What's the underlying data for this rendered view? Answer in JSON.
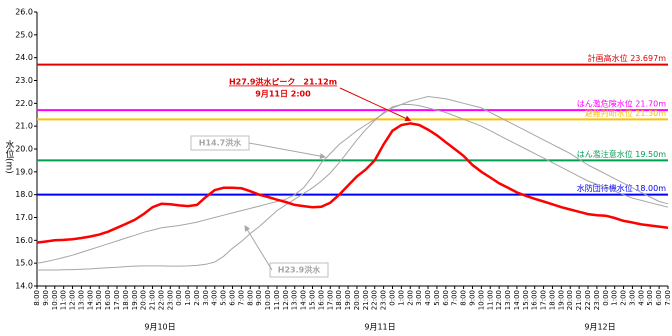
{
  "chart_data": {
    "type": "line",
    "y_axis_label": "水位(m)",
    "categories": [
      "8:00",
      "9:00",
      "10:00",
      "11:00",
      "12:00",
      "13:00",
      "14:00",
      "15:00",
      "16:00",
      "17:00",
      "18:00",
      "19:00",
      "20:00",
      "21:00",
      "22:00",
      "23:00",
      "0:00",
      "1:00",
      "2:00",
      "3:00",
      "4:00",
      "5:00",
      "6:00",
      "7:00",
      "8:00",
      "9:00",
      "10:00",
      "11:00",
      "12:00",
      "13:00",
      "14:00",
      "15:00",
      "16:00",
      "17:00",
      "18:00",
      "19:00",
      "20:00",
      "21:00",
      "22:00",
      "23:00",
      "0:00",
      "1:00",
      "2:00",
      "3:00",
      "4:00",
      "5:00",
      "6:00",
      "7:00",
      "8:00",
      "9:00",
      "10:00",
      "11:00",
      "12:00",
      "13:00",
      "14:00",
      "15:00",
      "16:00",
      "17:00",
      "18:00",
      "19:00",
      "20:00",
      "21:00",
      "22:00",
      "23:00",
      "0:00",
      "1:00",
      "2:00",
      "3:00",
      "4:00",
      "5:00",
      "6:00",
      "7:00"
    ],
    "day_labels": [
      "9月10日",
      "9月11日",
      "9月12日"
    ],
    "series": [
      {
        "name": "H14.7洪水",
        "color": "#a6a6a6",
        "width": 1,
        "values": [
          15.0,
          15.07,
          15.15,
          15.25,
          15.35,
          15.47,
          15.6,
          15.72,
          15.85,
          15.97,
          16.1,
          16.22,
          16.35,
          16.45,
          16.55,
          16.6,
          16.65,
          16.72,
          16.8,
          16.9,
          17.0,
          17.1,
          17.2,
          17.3,
          17.4,
          17.5,
          17.6,
          17.7,
          17.8,
          18.0,
          18.3,
          18.8,
          19.4,
          19.8,
          20.2,
          20.5,
          20.8,
          21.05,
          21.3,
          21.55,
          21.8,
          21.95,
          22.1,
          22.2,
          22.3,
          22.25,
          22.2,
          22.1,
          22.0,
          21.9,
          21.8,
          21.6,
          21.4,
          21.2,
          21.0,
          20.8,
          20.6,
          20.4,
          20.2,
          20.0,
          19.8,
          19.55,
          19.3,
          19.1,
          18.9,
          18.7,
          18.5,
          18.3,
          18.1,
          17.9,
          17.7,
          17.6
        ]
      },
      {
        "name": "H23.9洪水",
        "color": "#a6a6a6",
        "width": 1,
        "values": [
          14.7,
          14.7,
          14.7,
          14.71,
          14.72,
          14.73,
          14.75,
          14.78,
          14.8,
          14.82,
          14.85,
          14.87,
          14.88,
          14.88,
          14.88,
          14.87,
          14.87,
          14.88,
          14.9,
          14.95,
          15.05,
          15.3,
          15.65,
          15.95,
          16.3,
          16.6,
          16.95,
          17.3,
          17.55,
          17.8,
          18.05,
          18.3,
          18.6,
          18.95,
          19.4,
          19.9,
          20.4,
          20.85,
          21.25,
          21.6,
          21.85,
          21.95,
          21.95,
          21.9,
          21.8,
          21.7,
          21.6,
          21.45,
          21.3,
          21.15,
          21.0,
          20.8,
          20.6,
          20.4,
          20.2,
          20.0,
          19.8,
          19.6,
          19.4,
          19.2,
          19.0,
          18.8,
          18.6,
          18.45,
          18.3,
          18.15,
          18.0,
          17.85,
          17.75,
          17.65,
          17.55,
          17.45
        ]
      },
      {
        "color": "#ff0000",
        "width": 2.5,
        "values": [
          15.9,
          15.95,
          16.0,
          16.02,
          16.05,
          16.1,
          16.17,
          16.25,
          16.38,
          16.55,
          16.72,
          16.9,
          17.15,
          17.45,
          17.6,
          17.58,
          17.53,
          17.5,
          17.55,
          17.9,
          18.2,
          18.3,
          18.3,
          18.28,
          18.15,
          18.0,
          17.9,
          17.78,
          17.68,
          17.55,
          17.5,
          17.45,
          17.47,
          17.65,
          18.0,
          18.4,
          18.8,
          19.1,
          19.5,
          20.2,
          20.8,
          21.05,
          21.12,
          21.05,
          20.85,
          20.6,
          20.3,
          20.0,
          19.7,
          19.3,
          19.0,
          18.75,
          18.5,
          18.3,
          18.1,
          17.95,
          17.82,
          17.7,
          17.58,
          17.45,
          17.35,
          17.25,
          17.15,
          17.1,
          17.08,
          16.98,
          16.85,
          16.78,
          16.7,
          16.65,
          16.6,
          16.55
        ]
      }
    ],
    "reference_lines": [
      {
        "label": "計画高水位 23.697m",
        "value": 23.697,
        "color": "#e00000"
      },
      {
        "label": "はん濫危険水位 21.70m",
        "value": 21.7,
        "color": "#ff00ff"
      },
      {
        "label": "避難判断水位 21.30m",
        "value": 21.3,
        "color": "#ffc000"
      },
      {
        "label": "はん濫注意水位 19.50m",
        "value": 19.5,
        "color": "#00a050"
      },
      {
        "label": "水防団待機水位 18.00m",
        "value": 18.0,
        "color": "#0000ff"
      }
    ],
    "peak_annotation": [
      "H27.9洪水ピーク　21.12m",
      "9月11日 2:00"
    ],
    "ylim": [
      14,
      26
    ],
    "yticks": [
      {
        "value": 14,
        "label": "14.0"
      },
      {
        "value": 15,
        "label": "15.0"
      },
      {
        "value": 16,
        "label": "16.0"
      },
      {
        "value": 17,
        "label": "17.0"
      },
      {
        "value": 18,
        "label": "18.0"
      },
      {
        "value": 19,
        "label": "19.0"
      },
      {
        "value": 20,
        "label": "20.0"
      },
      {
        "value": 21,
        "label": "21.0"
      },
      {
        "value": 22,
        "label": "22.0"
      },
      {
        "value": 23,
        "label": "23.0"
      },
      {
        "value": 24,
        "label": "24.0"
      },
      {
        "value": 25,
        "label": "25.0"
      },
      {
        "value": 26,
        "label": "26.0"
      }
    ]
  }
}
